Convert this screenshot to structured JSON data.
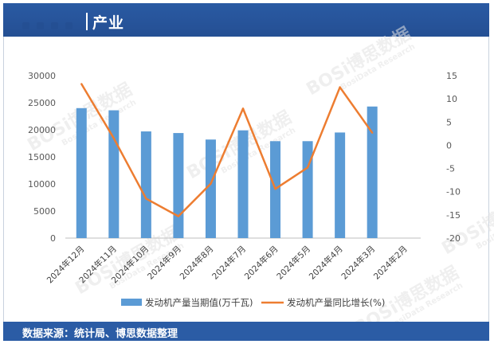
{
  "header": {
    "title": "产业"
  },
  "footer": {
    "source": "数据来源：统计局、博思数据整理"
  },
  "watermarks": [
    "BOSi博思数据",
    "BosiData Research"
  ],
  "chart_data": {
    "type": "bar",
    "categories": [
      "2024年12月",
      "2024年11月",
      "2024年10月",
      "2024年9月",
      "2024年8月",
      "2024年7月",
      "2024年6月",
      "2024年5月",
      "2024年4月",
      "2024年3月",
      "2024年2月"
    ],
    "series": [
      {
        "name": "发动机产量当期值(万千瓦)",
        "type": "bar",
        "axis": "left",
        "color": "#5b9bd5",
        "values": [
          24000,
          23600,
          19700,
          19400,
          18200,
          19900,
          17900,
          17900,
          19500,
          24300,
          null
        ]
      },
      {
        "name": "发动机产量同比增长(%)",
        "type": "line",
        "axis": "right",
        "color": "#ed7d31",
        "values": [
          13.2,
          1.5,
          -11.5,
          -15.3,
          -8.3,
          7.9,
          -9.4,
          -4.8,
          12.5,
          2.7,
          null
        ]
      }
    ],
    "y_left": {
      "min": 0,
      "max": 30000,
      "ticks": [
        "0",
        "5000",
        "10000",
        "15000",
        "20000",
        "25000",
        "30000"
      ]
    },
    "y_right": {
      "min": -20,
      "max": 15,
      "ticks": [
        "-20",
        "-15",
        "-10",
        "-5",
        "0",
        "5",
        "10",
        "15"
      ]
    },
    "grid": false,
    "legend": "bottom"
  }
}
